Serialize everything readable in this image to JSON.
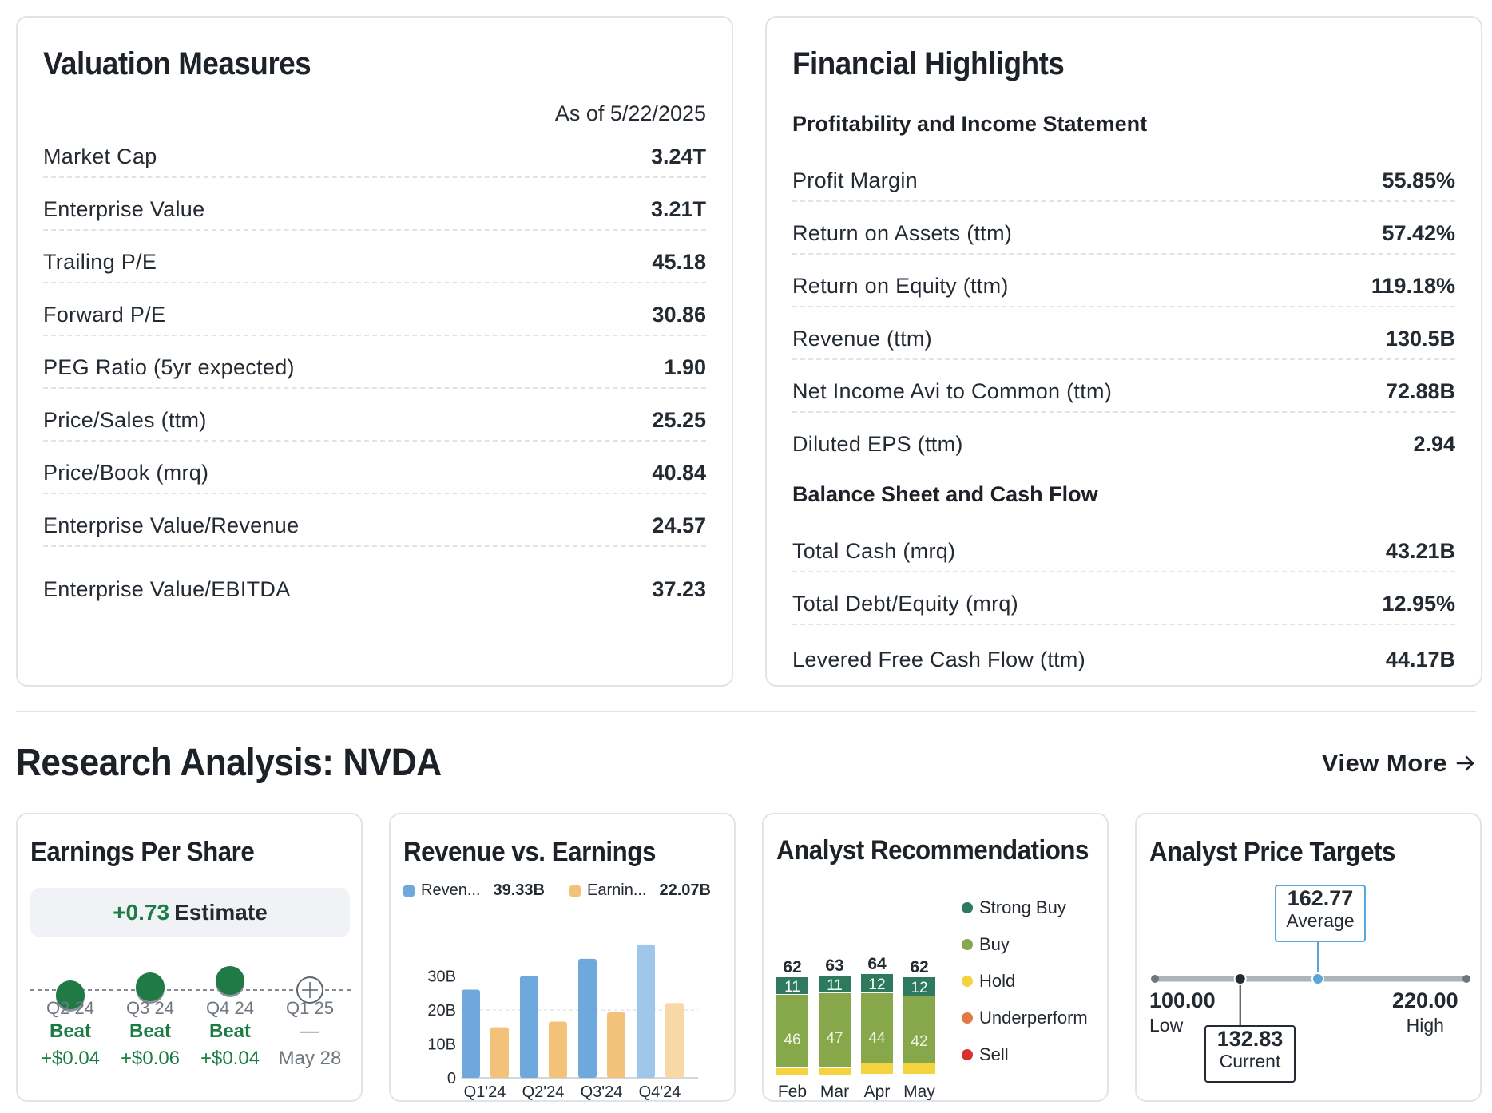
{
  "valuation": {
    "title": "Valuation Measures",
    "as_of": "As of 5/22/2025",
    "rows": [
      {
        "label": "Market Cap",
        "value": "3.24T"
      },
      {
        "label": "Enterprise Value",
        "value": "3.21T"
      },
      {
        "label": "Trailing P/E",
        "value": "45.18"
      },
      {
        "label": "Forward P/E",
        "value": "30.86"
      },
      {
        "label": "PEG Ratio (5yr expected)",
        "value": "1.90"
      },
      {
        "label": "Price/Sales (ttm)",
        "value": "25.25"
      },
      {
        "label": "Price/Book (mrq)",
        "value": "40.84"
      },
      {
        "label": "Enterprise Value/Revenue",
        "value": "24.57"
      },
      {
        "label": "Enterprise Value/EBITDA",
        "value": "37.23"
      }
    ]
  },
  "financial": {
    "title": "Financial Highlights",
    "profit_heading": "Profitability and Income Statement",
    "profit_rows": [
      {
        "label": "Profit Margin",
        "value": "55.85%"
      },
      {
        "label": "Return on Assets (ttm)",
        "value": "57.42%"
      },
      {
        "label": "Return on Equity (ttm)",
        "value": "119.18%"
      },
      {
        "label": "Revenue (ttm)",
        "value": "130.5B"
      },
      {
        "label": "Net Income Avi to Common (ttm)",
        "value": "72.88B"
      },
      {
        "label": "Diluted EPS (ttm)",
        "value": "2.94"
      }
    ],
    "balance_heading": "Balance Sheet and Cash Flow",
    "balance_rows": [
      {
        "label": "Total Cash (mrq)",
        "value": "43.21B"
      },
      {
        "label": "Total Debt/Equity (mrq)",
        "value": "12.95%"
      },
      {
        "label": "Levered Free Cash Flow (ttm)",
        "value": "44.17B"
      }
    ]
  },
  "research": {
    "title": "Research Analysis: NVDA",
    "view_more": "View More",
    "arrow_icon": "arrow-right-icon"
  },
  "eps": {
    "title": "Earnings Per Share",
    "estimate_diff": "+0.73",
    "estimate_label": "Estimate",
    "quarters": [
      {
        "quarter": "Q2 24",
        "result": "Beat",
        "diff": "+$0.04"
      },
      {
        "quarter": "Q3 24",
        "result": "Beat",
        "diff": "+$0.06"
      },
      {
        "quarter": "Q4 24",
        "result": "Beat",
        "diff": "+$0.04"
      },
      {
        "quarter": "Q1 25",
        "result": "—",
        "diff": "May 28"
      }
    ],
    "beat_color": "#1f7a45",
    "upcoming_icon": "crosshair-icon"
  },
  "revenue_earnings": {
    "title": "Revenue vs. Earnings",
    "legend": [
      {
        "name": "Reven...",
        "value": "39.33B",
        "color": "#6fa8dc"
      },
      {
        "name": "Earnin...",
        "value": "22.07B",
        "color": "#f3c27a"
      }
    ],
    "chart_data": {
      "type": "bar",
      "categories": [
        "Q1'24",
        "Q2'24",
        "Q3'24",
        "Q4'24"
      ],
      "series": [
        {
          "name": "Revenue",
          "values": [
            26.0,
            30.0,
            35.1,
            39.33
          ]
        },
        {
          "name": "Earnings",
          "values": [
            14.9,
            16.6,
            19.3,
            22.07
          ]
        }
      ],
      "y_ticks": [
        "0",
        "10B",
        "20B",
        "30B"
      ],
      "ylim": [
        0,
        40
      ]
    }
  },
  "recommendations": {
    "title": "Analyst Recommendations",
    "legend": [
      {
        "name": "Strong Buy",
        "color": "#2e7a5f"
      },
      {
        "name": "Buy",
        "color": "#86a84a"
      },
      {
        "name": "Hold",
        "color": "#f5d33f"
      },
      {
        "name": "Underperform",
        "color": "#e07b45"
      },
      {
        "name": "Sell",
        "color": "#d9312f"
      }
    ],
    "chart_data": {
      "type": "bar",
      "stacked": true,
      "categories": [
        "Feb",
        "Mar",
        "Apr",
        "May"
      ],
      "totals": [
        "62",
        "63",
        "64",
        "62"
      ],
      "series": [
        {
          "name": "Strong Buy",
          "values": [
            11,
            11,
            12,
            12
          ]
        },
        {
          "name": "Buy",
          "values": [
            46,
            47,
            44,
            42
          ]
        },
        {
          "name": "Hold",
          "values": [
            5,
            5,
            7,
            7
          ]
        },
        {
          "name": "Underperform",
          "values": [
            0,
            0,
            1,
            1
          ]
        },
        {
          "name": "Sell",
          "values": [
            0,
            0,
            0,
            0
          ]
        }
      ]
    }
  },
  "price_targets": {
    "title": "Analyst Price Targets",
    "low": {
      "value": "100.00",
      "label": "Low",
      "num": 100.0
    },
    "high": {
      "value": "220.00",
      "label": "High",
      "num": 220.0
    },
    "average": {
      "value": "162.77",
      "label": "Average",
      "num": 162.77
    },
    "current": {
      "value": "132.83",
      "label": "Current",
      "num": 132.83
    }
  }
}
